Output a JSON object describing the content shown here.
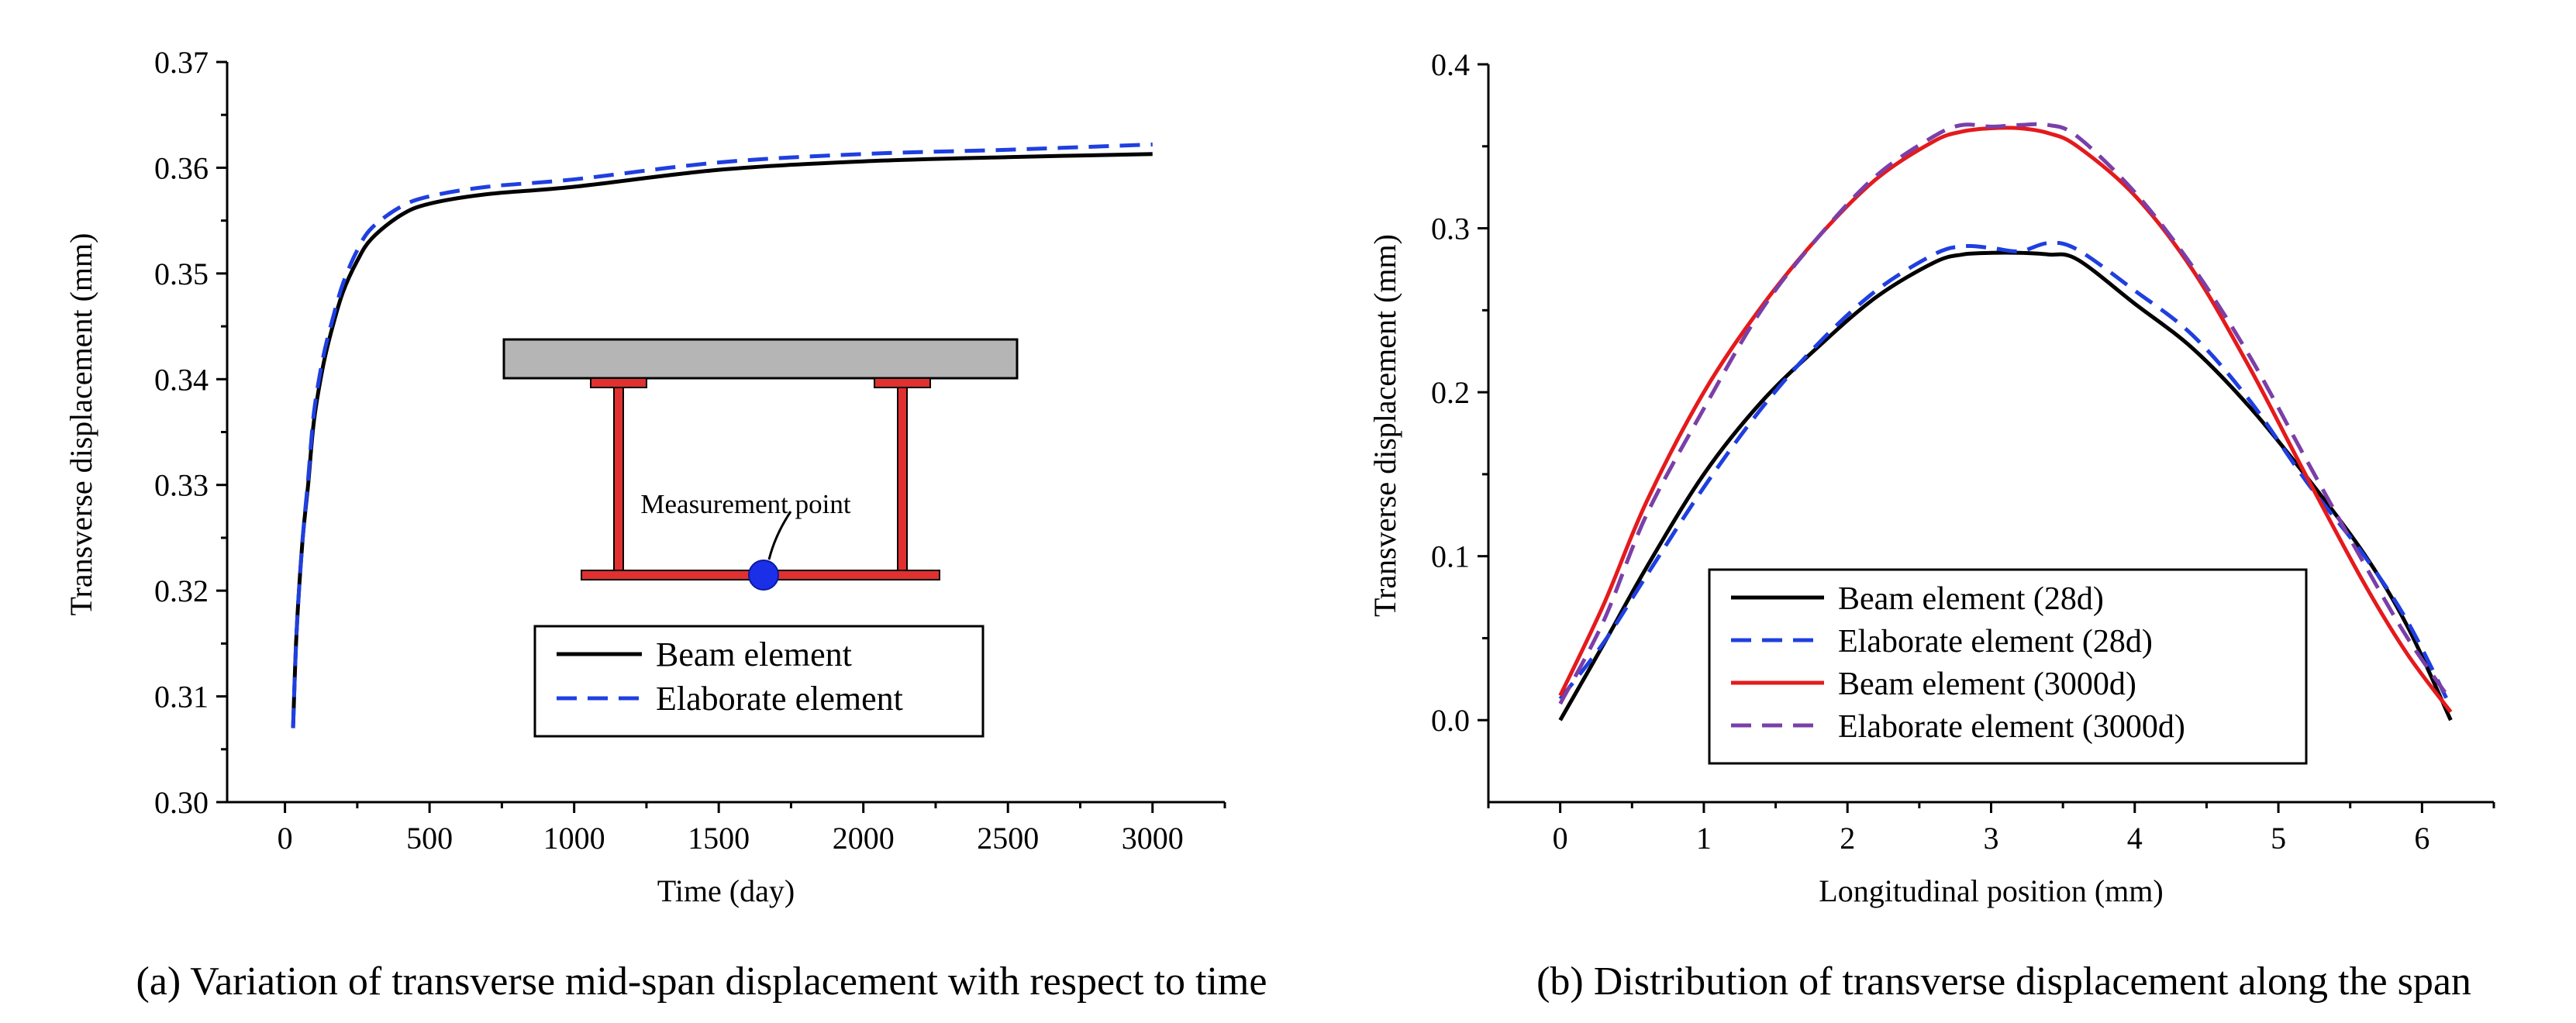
{
  "chart_data": [
    {
      "type": "line",
      "caption": "(a) Variation of transverse mid-span displacement with respect to time",
      "xlabel": "Time (day)",
      "ylabel": "Transverse displacement (mm)",
      "xlim": [
        -200,
        3250
      ],
      "ylim": [
        0.3,
        0.37
      ],
      "xticks": [
        0,
        500,
        1000,
        1500,
        2000,
        2500,
        3000
      ],
      "yticks": [
        0.3,
        0.31,
        0.32,
        0.33,
        0.34,
        0.35,
        0.36,
        0.37
      ],
      "ytick_labels": [
        "0.30",
        "0.31",
        "0.32",
        "0.33",
        "0.34",
        "0.35",
        "0.36",
        "0.37"
      ],
      "grid": false,
      "legend_position": "bottom-center",
      "series": [
        {
          "name": "Beam element",
          "color": "#000000",
          "style": "solid",
          "x": [
            28,
            40,
            60,
            80,
            100,
            130,
            160,
            200,
            250,
            300,
            400,
            500,
            700,
            1000,
            1500,
            2000,
            2500,
            3000
          ],
          "y": [
            0.307,
            0.316,
            0.3245,
            0.33,
            0.336,
            0.341,
            0.3445,
            0.3482,
            0.3512,
            0.3533,
            0.3555,
            0.3566,
            0.3575,
            0.3582,
            0.3598,
            0.3606,
            0.361,
            0.3613
          ]
        },
        {
          "name": "Elaborate element",
          "color": "#1f3fe0",
          "style": "dashed",
          "x": [
            28,
            40,
            60,
            80,
            100,
            130,
            160,
            200,
            250,
            300,
            400,
            500,
            700,
            1000,
            1500,
            2000,
            2500,
            3000
          ],
          "y": [
            0.307,
            0.316,
            0.3245,
            0.3305,
            0.3368,
            0.3418,
            0.3452,
            0.349,
            0.3522,
            0.3543,
            0.3563,
            0.3573,
            0.3582,
            0.3589,
            0.3605,
            0.3613,
            0.3617,
            0.3622
          ]
        }
      ],
      "inset": {
        "label": "Measurement point"
      }
    },
    {
      "type": "line",
      "caption": "(b) Distribution of transverse displacement along the span",
      "xlabel": "Longitudinal position (mm)",
      "ylabel": "Transverse displacement (mm)",
      "xlim": [
        -0.5,
        6.5
      ],
      "ylim": [
        -0.05,
        0.4
      ],
      "xticks": [
        0,
        1,
        2,
        3,
        4,
        5,
        6
      ],
      "yticks": [
        0.0,
        0.1,
        0.2,
        0.3,
        0.4
      ],
      "ytick_labels": [
        "0.0",
        "0.1",
        "0.2",
        "0.3",
        "0.4"
      ],
      "grid": false,
      "legend_position": "bottom-center",
      "series": [
        {
          "name": "Beam element (28d)",
          "color": "#000000",
          "style": "solid",
          "x": [
            0.0,
            0.3,
            0.6,
            1.0,
            1.4,
            1.8,
            2.2,
            2.6,
            2.8,
            3.0,
            3.2,
            3.4,
            3.6,
            4.0,
            4.4,
            4.8,
            5.2,
            5.6,
            5.9,
            6.2
          ],
          "y": [
            0.0,
            0.046,
            0.093,
            0.15,
            0.194,
            0.228,
            0.258,
            0.279,
            0.284,
            0.285,
            0.285,
            0.284,
            0.281,
            0.254,
            0.227,
            0.191,
            0.148,
            0.101,
            0.057,
            0.0
          ]
        },
        {
          "name": "Elaborate element (28d)",
          "color": "#1f3fe0",
          "style": "dashed",
          "x": [
            0.0,
            0.3,
            0.6,
            1.0,
            1.4,
            1.8,
            2.2,
            2.6,
            2.8,
            3.0,
            3.2,
            3.4,
            3.6,
            4.0,
            4.4,
            4.8,
            5.2,
            5.6,
            5.9,
            6.2
          ],
          "y": [
            0.013,
            0.047,
            0.088,
            0.142,
            0.19,
            0.23,
            0.262,
            0.284,
            0.289,
            0.288,
            0.286,
            0.291,
            0.287,
            0.262,
            0.235,
            0.195,
            0.145,
            0.1,
            0.06,
            0.008
          ]
        },
        {
          "name": "Beam element (3000d)",
          "color": "#e41a1c",
          "style": "solid",
          "x": [
            0.0,
            0.3,
            0.6,
            1.0,
            1.4,
            1.8,
            2.2,
            2.6,
            2.8,
            3.0,
            3.2,
            3.4,
            3.6,
            4.0,
            4.4,
            4.8,
            5.2,
            5.6,
            5.9,
            6.2
          ],
          "y": [
            0.015,
            0.07,
            0.133,
            0.2,
            0.252,
            0.295,
            0.33,
            0.353,
            0.359,
            0.361,
            0.361,
            0.358,
            0.35,
            0.32,
            0.275,
            0.215,
            0.148,
            0.083,
            0.04,
            0.005
          ]
        },
        {
          "name": "Elaborate element (3000d)",
          "color": "#7b3fa8",
          "style": "dashed",
          "x": [
            0.0,
            0.3,
            0.6,
            1.0,
            1.4,
            1.8,
            2.2,
            2.6,
            2.8,
            3.0,
            3.2,
            3.4,
            3.6,
            4.0,
            4.4,
            4.8,
            5.2,
            5.6,
            5.9,
            6.2
          ],
          "y": [
            0.01,
            0.06,
            0.125,
            0.19,
            0.25,
            0.295,
            0.332,
            0.356,
            0.363,
            0.362,
            0.363,
            0.363,
            0.356,
            0.322,
            0.277,
            0.222,
            0.158,
            0.095,
            0.05,
            0.012
          ]
        }
      ]
    }
  ]
}
